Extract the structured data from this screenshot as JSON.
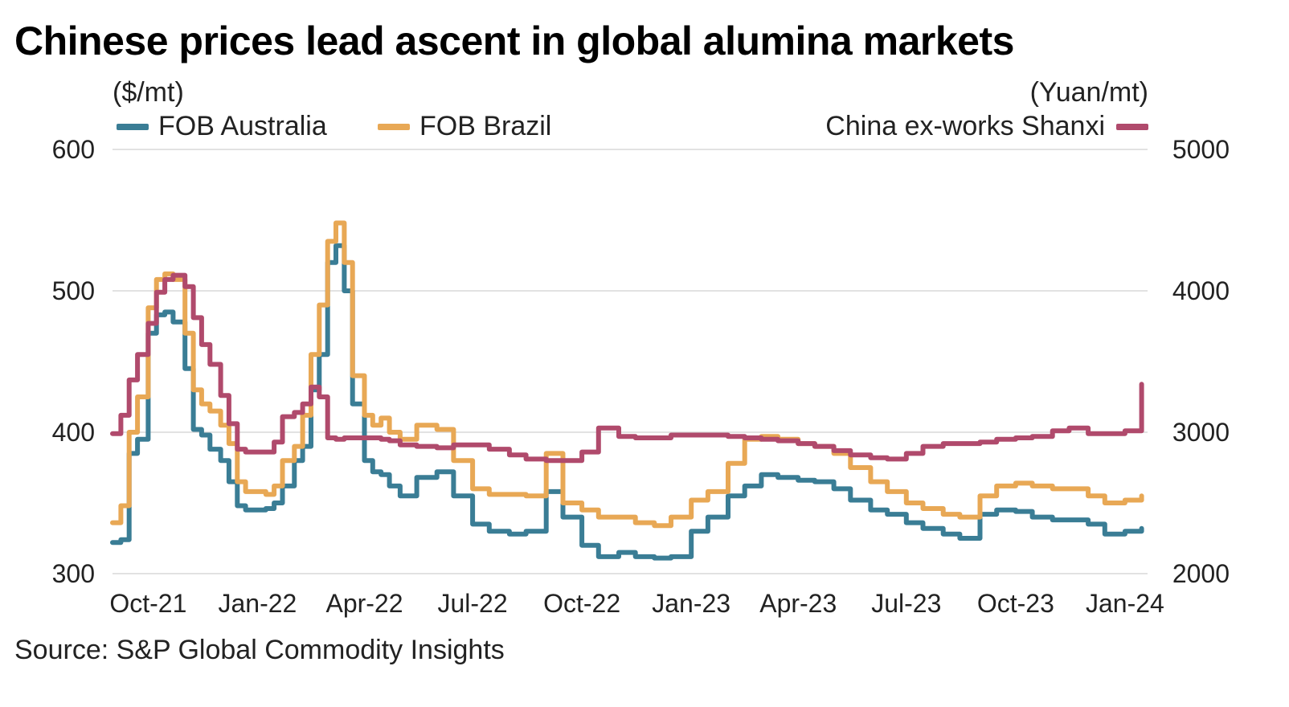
{
  "chart_data": {
    "type": "line",
    "title": "Chinese prices lead ascent in global alumina markets",
    "source": "Source: S&P Global Commodity Insights",
    "left_axis": {
      "unit": "($/mt)",
      "range": [
        300,
        600
      ],
      "ticks": [
        "600",
        "500",
        "400",
        "300"
      ]
    },
    "right_axis": {
      "unit": "(Yuan/mt)",
      "range": [
        2000,
        5000
      ],
      "ticks": [
        "5000",
        "4000",
        "3000",
        "2000"
      ]
    },
    "x_ticks": [
      "Oct-21",
      "Jan-22",
      "Apr-22",
      "Jul-22",
      "Oct-22",
      "Jan-23",
      "Apr-23",
      "Jul-23",
      "Oct-23",
      "Jan-24"
    ],
    "grid": true,
    "legend": {
      "placement": "top"
    },
    "series": [
      {
        "name": "FOB Australia",
        "axis": "left",
        "color": "#3a7d95",
        "x": [
          "2021-09-01",
          "2021-09-08",
          "2021-09-15",
          "2021-09-22",
          "2021-10-01",
          "2021-10-08",
          "2021-10-15",
          "2021-10-22",
          "2021-11-01",
          "2021-11-08",
          "2021-11-15",
          "2021-11-22",
          "2021-12-01",
          "2021-12-08",
          "2021-12-15",
          "2021-12-22",
          "2022-01-01",
          "2022-01-08",
          "2022-01-15",
          "2022-01-22",
          "2022-02-01",
          "2022-02-08",
          "2022-02-15",
          "2022-02-22",
          "2022-03-01",
          "2022-03-08",
          "2022-03-15",
          "2022-03-22",
          "2022-04-01",
          "2022-04-08",
          "2022-04-15",
          "2022-04-22",
          "2022-05-01",
          "2022-05-15",
          "2022-06-01",
          "2022-06-15",
          "2022-07-01",
          "2022-07-15",
          "2022-08-01",
          "2022-08-15",
          "2022-09-01",
          "2022-09-15",
          "2022-10-01",
          "2022-10-15",
          "2022-11-01",
          "2022-11-15",
          "2022-12-01",
          "2022-12-15",
          "2023-01-01",
          "2023-01-15",
          "2023-02-01",
          "2023-02-15",
          "2023-03-01",
          "2023-03-15",
          "2023-04-01",
          "2023-04-15",
          "2023-05-01",
          "2023-05-15",
          "2023-06-01",
          "2023-06-15",
          "2023-07-01",
          "2023-07-15",
          "2023-08-01",
          "2023-08-15",
          "2023-09-01",
          "2023-09-15",
          "2023-10-01",
          "2023-10-15",
          "2023-11-01",
          "2023-11-15",
          "2023-12-01",
          "2023-12-15",
          "2024-01-01",
          "2024-01-15"
        ],
        "values": [
          322,
          324,
          385,
          395,
          470,
          483,
          485,
          478,
          445,
          402,
          398,
          388,
          380,
          365,
          348,
          345,
          345,
          346,
          350,
          362,
          380,
          390,
          430,
          455,
          520,
          532,
          500,
          420,
          380,
          372,
          370,
          362,
          355,
          368,
          372,
          355,
          335,
          330,
          328,
          330,
          358,
          340,
          320,
          312,
          315,
          312,
          311,
          312,
          330,
          340,
          355,
          362,
          370,
          368,
          366,
          365,
          360,
          352,
          345,
          342,
          336,
          332,
          328,
          325,
          342,
          345,
          344,
          340,
          338,
          338,
          335,
          328,
          330,
          332
        ]
      },
      {
        "name": "FOB Brazil",
        "axis": "left",
        "color": "#e8a855",
        "x": [
          "2021-09-01",
          "2021-09-08",
          "2021-09-15",
          "2021-09-22",
          "2021-10-01",
          "2021-10-08",
          "2021-10-15",
          "2021-10-22",
          "2021-11-01",
          "2021-11-08",
          "2021-11-15",
          "2021-11-22",
          "2021-12-01",
          "2021-12-08",
          "2021-12-15",
          "2021-12-22",
          "2022-01-01",
          "2022-01-08",
          "2022-01-15",
          "2022-01-22",
          "2022-02-01",
          "2022-02-08",
          "2022-02-15",
          "2022-02-22",
          "2022-03-01",
          "2022-03-08",
          "2022-03-15",
          "2022-03-22",
          "2022-04-01",
          "2022-04-08",
          "2022-04-15",
          "2022-04-22",
          "2022-05-01",
          "2022-05-15",
          "2022-06-01",
          "2022-06-15",
          "2022-07-01",
          "2022-07-15",
          "2022-08-01",
          "2022-08-15",
          "2022-09-01",
          "2022-09-15",
          "2022-10-01",
          "2022-10-15",
          "2022-11-01",
          "2022-11-15",
          "2022-12-01",
          "2022-12-15",
          "2023-01-01",
          "2023-01-15",
          "2023-02-01",
          "2023-02-15",
          "2023-03-01",
          "2023-03-15",
          "2023-04-01",
          "2023-04-15",
          "2023-05-01",
          "2023-05-15",
          "2023-06-01",
          "2023-06-15",
          "2023-07-01",
          "2023-07-15",
          "2023-08-01",
          "2023-08-15",
          "2023-09-01",
          "2023-09-15",
          "2023-10-01",
          "2023-10-15",
          "2023-11-01",
          "2023-11-15",
          "2023-12-01",
          "2023-12-15",
          "2024-01-01",
          "2024-01-15"
        ],
        "values": [
          336,
          348,
          400,
          425,
          488,
          508,
          512,
          508,
          470,
          430,
          420,
          415,
          405,
          392,
          365,
          358,
          358,
          356,
          362,
          380,
          390,
          412,
          455,
          490,
          535,
          548,
          520,
          440,
          412,
          405,
          410,
          400,
          395,
          405,
          402,
          380,
          360,
          356,
          356,
          355,
          385,
          350,
          345,
          340,
          340,
          336,
          334,
          340,
          352,
          358,
          378,
          395,
          397,
          395,
          392,
          390,
          385,
          375,
          365,
          358,
          350,
          346,
          342,
          340,
          355,
          362,
          364,
          362,
          360,
          360,
          355,
          350,
          352,
          355
        ]
      },
      {
        "name": "China ex-works Shanxi",
        "axis": "right",
        "color": "#b04a6c",
        "x": [
          "2021-09-01",
          "2021-09-08",
          "2021-09-15",
          "2021-09-22",
          "2021-10-01",
          "2021-10-08",
          "2021-10-15",
          "2021-10-22",
          "2021-11-01",
          "2021-11-08",
          "2021-11-15",
          "2021-11-22",
          "2021-12-01",
          "2021-12-08",
          "2021-12-15",
          "2021-12-22",
          "2022-01-01",
          "2022-01-08",
          "2022-01-15",
          "2022-01-22",
          "2022-02-01",
          "2022-02-08",
          "2022-02-15",
          "2022-02-22",
          "2022-03-01",
          "2022-03-08",
          "2022-03-15",
          "2022-03-22",
          "2022-04-01",
          "2022-04-08",
          "2022-04-15",
          "2022-04-22",
          "2022-05-01",
          "2022-05-15",
          "2022-06-01",
          "2022-06-15",
          "2022-07-01",
          "2022-07-15",
          "2022-08-01",
          "2022-08-15",
          "2022-09-01",
          "2022-09-15",
          "2022-10-01",
          "2022-10-15",
          "2022-11-01",
          "2022-11-15",
          "2022-12-01",
          "2022-12-15",
          "2023-01-01",
          "2023-01-15",
          "2023-02-01",
          "2023-02-15",
          "2023-03-01",
          "2023-03-15",
          "2023-04-01",
          "2023-04-15",
          "2023-05-01",
          "2023-05-15",
          "2023-06-01",
          "2023-06-15",
          "2023-07-01",
          "2023-07-15",
          "2023-08-01",
          "2023-08-15",
          "2023-09-01",
          "2023-09-15",
          "2023-10-01",
          "2023-10-15",
          "2023-11-01",
          "2023-11-15",
          "2023-12-01",
          "2023-12-15",
          "2024-01-01",
          "2024-01-15"
        ],
        "values": [
          2990,
          3120,
          3370,
          3550,
          3770,
          3990,
          4080,
          4110,
          4030,
          3810,
          3620,
          3480,
          3260,
          3060,
          2880,
          2860,
          2860,
          2860,
          2930,
          3110,
          3140,
          3200,
          3320,
          3250,
          2960,
          2950,
          2960,
          2960,
          2960,
          2960,
          2950,
          2940,
          2910,
          2900,
          2890,
          2910,
          2910,
          2880,
          2840,
          2810,
          2800,
          2800,
          2860,
          3030,
          2970,
          2960,
          2960,
          2980,
          2980,
          2980,
          2970,
          2960,
          2950,
          2940,
          2920,
          2900,
          2870,
          2840,
          2820,
          2810,
          2850,
          2900,
          2920,
          2920,
          2930,
          2950,
          2960,
          2970,
          3010,
          3030,
          2990,
          2990,
          3010,
          3340
        ]
      }
    ]
  }
}
